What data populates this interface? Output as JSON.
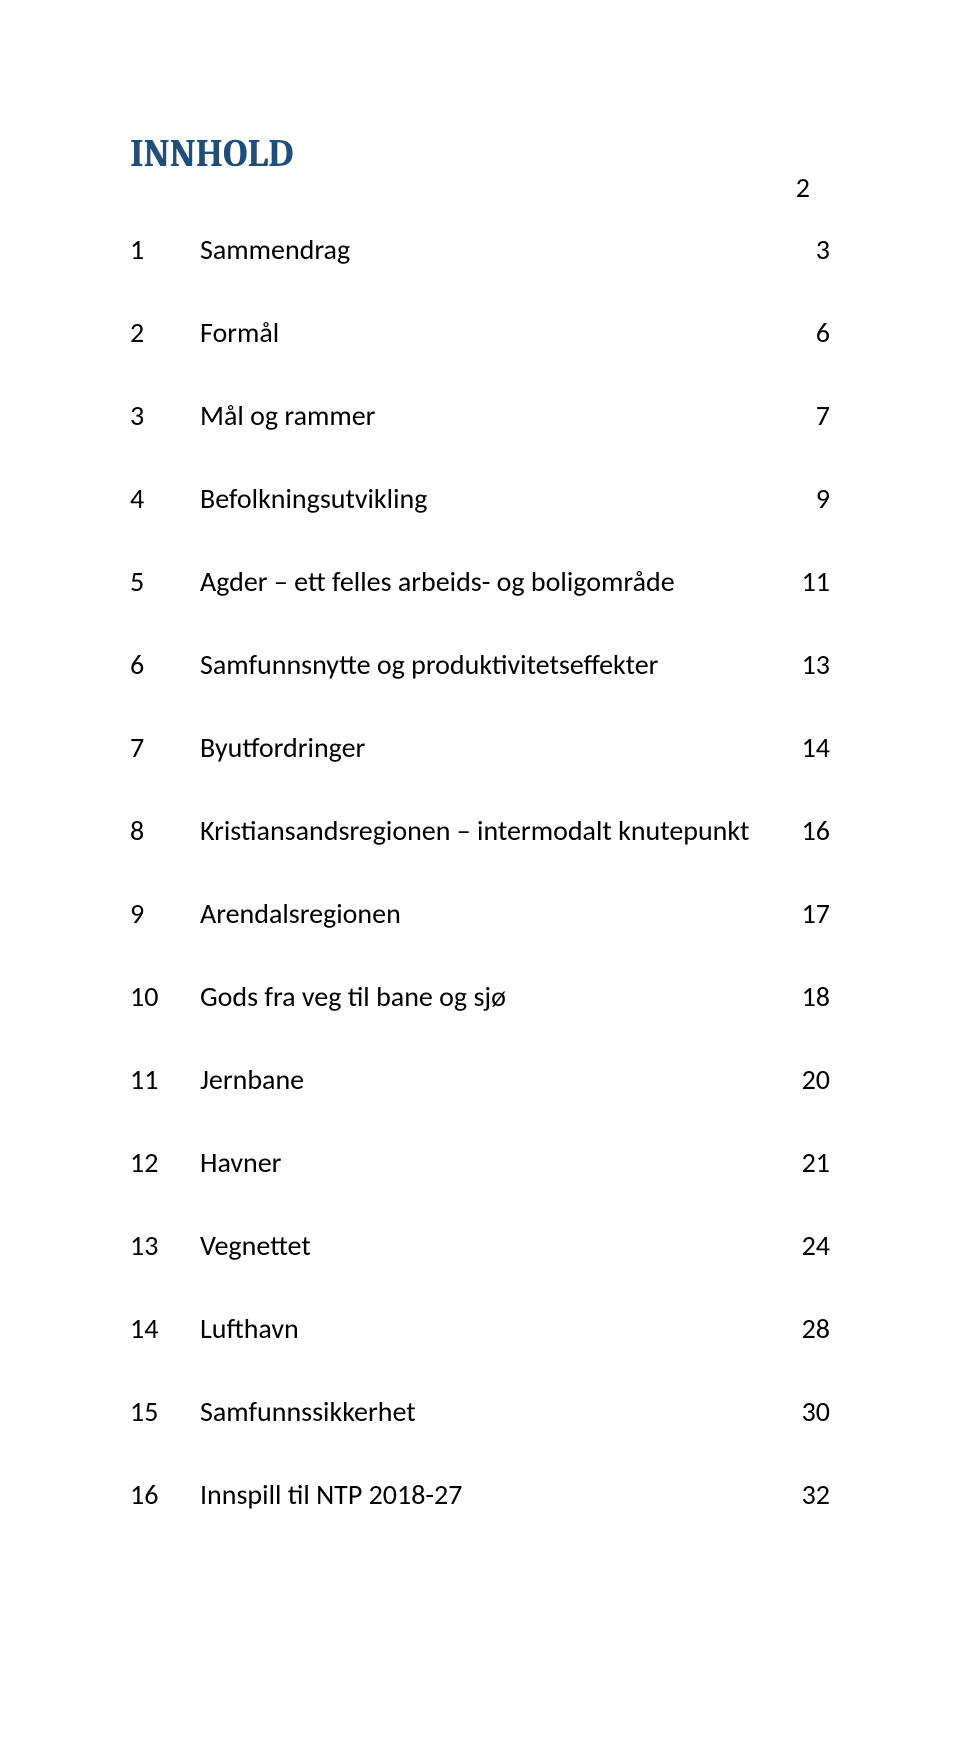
{
  "page_number": "2",
  "heading": "INNHOLD",
  "heading_color": "#1f4e79",
  "text_color": "#000000",
  "toc": [
    {
      "num": "1",
      "title": "Sammendrag",
      "page": "3"
    },
    {
      "num": "2",
      "title": "Formål",
      "page": "6"
    },
    {
      "num": "3",
      "title": "Mål og rammer",
      "page": "7"
    },
    {
      "num": "4",
      "title": "Befolkningsutvikling",
      "page": "9"
    },
    {
      "num": "5",
      "title": "Agder – ett felles arbeids- og boligområde",
      "page": "11"
    },
    {
      "num": "6",
      "title": "Samfunnsnytte og produktivitetseffekter",
      "page": "13"
    },
    {
      "num": "7",
      "title": "Byutfordringer",
      "page": "14"
    },
    {
      "num": "8",
      "title": "Kristiansandsregionen – intermodalt knutepunkt",
      "page": "16"
    },
    {
      "num": "9",
      "title": "Arendalsregionen",
      "page": "17"
    },
    {
      "num": "10",
      "title": "Gods fra veg til bane og sjø",
      "page": "18"
    },
    {
      "num": "11",
      "title": "Jernbane",
      "page": "20"
    },
    {
      "num": "12",
      "title": "Havner",
      "page": "21"
    },
    {
      "num": "13",
      "title": "Vegnettet",
      "page": "24"
    },
    {
      "num": "14",
      "title": "Lufthavn",
      "page": "28"
    },
    {
      "num": "15",
      "title": "Samfunnssikkerhet",
      "page": "30"
    },
    {
      "num": "16",
      "title": "Innspill til NTP 2018-27",
      "page": "32"
    }
  ]
}
